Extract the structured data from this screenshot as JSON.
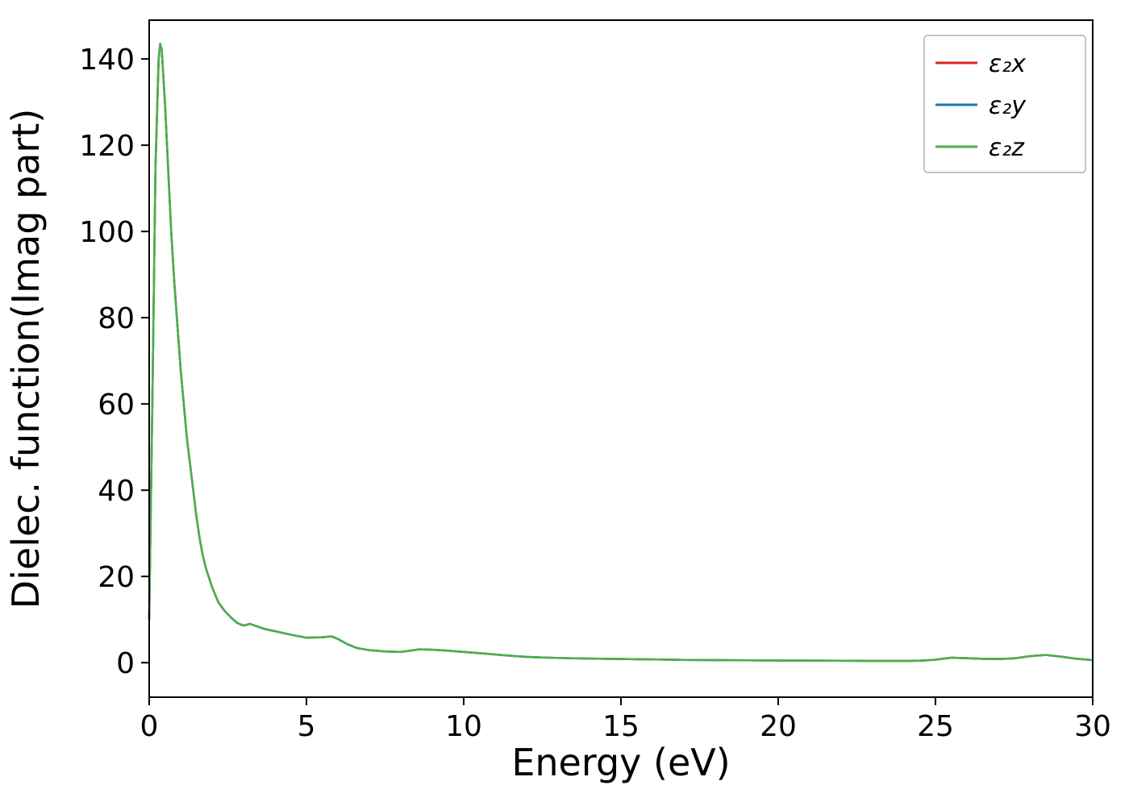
{
  "figure": {
    "background": "#ffffff"
  },
  "chart_data": {
    "type": "line",
    "title": "",
    "xlabel": "Energy (eV)",
    "ylabel": "Dielec. function(Imag part)",
    "xlim": [
      0,
      30
    ],
    "ylim": [
      -8,
      149
    ],
    "xticks": [
      0,
      5,
      10,
      15,
      20,
      25,
      30
    ],
    "yticks": [
      0,
      20,
      40,
      60,
      80,
      100,
      120,
      140
    ],
    "grid": false,
    "legend_position": "upper right",
    "x": [
      0,
      0.1,
      0.2,
      0.3,
      0.35,
      0.4,
      0.5,
      0.6,
      0.7,
      0.8,
      0.9,
      1.0,
      1.1,
      1.2,
      1.3,
      1.4,
      1.5,
      1.6,
      1.7,
      1.8,
      2.0,
      2.2,
      2.4,
      2.6,
      2.8,
      3.0,
      3.2,
      3.4,
      3.6,
      3.8,
      4.0,
      4.5,
      5.0,
      5.5,
      5.8,
      6.0,
      6.3,
      6.6,
      7.0,
      7.5,
      8.0,
      8.3,
      8.6,
      9.0,
      9.5,
      10.0,
      10.5,
      11.0,
      11.5,
      12.0,
      12.5,
      13.0,
      14.0,
      15.0,
      16.0,
      17.0,
      18.0,
      19.0,
      20.0,
      21.0,
      22.0,
      23.0,
      24.0,
      24.5,
      25.0,
      25.5,
      26.0,
      26.5,
      27.0,
      27.5,
      28.0,
      28.5,
      29.0,
      29.5,
      30.0
    ],
    "series": [
      {
        "name": "ε₂x",
        "color": "#d62728",
        "values": [
          10,
          60,
          115,
          140,
          143.5,
          142,
          130,
          115,
          100,
          88,
          78,
          68,
          60,
          52,
          46,
          40,
          34,
          29,
          25,
          22,
          17.5,
          14,
          12,
          10.5,
          9.2,
          8.6,
          9.0,
          8.5,
          8.0,
          7.6,
          7.3,
          6.5,
          5.8,
          5.9,
          6.1,
          5.5,
          4.3,
          3.4,
          2.9,
          2.6,
          2.5,
          2.8,
          3.1,
          3.0,
          2.8,
          2.5,
          2.2,
          1.9,
          1.6,
          1.35,
          1.2,
          1.1,
          0.95,
          0.85,
          0.75,
          0.65,
          0.6,
          0.55,
          0.5,
          0.48,
          0.45,
          0.42,
          0.4,
          0.45,
          0.7,
          1.15,
          1.05,
          0.9,
          0.85,
          1.0,
          1.5,
          1.8,
          1.4,
          0.9,
          0.6
        ]
      },
      {
        "name": "ε₂y",
        "color": "#1f77b4",
        "values": [
          10,
          60,
          115,
          140,
          143.5,
          142,
          130,
          115,
          100,
          88,
          78,
          68,
          60,
          52,
          46,
          40,
          34,
          29,
          25,
          22,
          17.5,
          14,
          12,
          10.5,
          9.2,
          8.6,
          9.0,
          8.5,
          8.0,
          7.6,
          7.3,
          6.5,
          5.8,
          5.9,
          6.1,
          5.5,
          4.3,
          3.4,
          2.9,
          2.6,
          2.5,
          2.8,
          3.1,
          3.0,
          2.8,
          2.5,
          2.2,
          1.9,
          1.6,
          1.35,
          1.2,
          1.1,
          0.95,
          0.85,
          0.75,
          0.65,
          0.6,
          0.55,
          0.5,
          0.48,
          0.45,
          0.42,
          0.4,
          0.45,
          0.7,
          1.15,
          1.05,
          0.9,
          0.85,
          1.0,
          1.5,
          1.8,
          1.4,
          0.9,
          0.6
        ]
      },
      {
        "name": "ε₂z",
        "color": "#4daf4a",
        "values": [
          10,
          60,
          115,
          140,
          143.5,
          142,
          130,
          115,
          100,
          88,
          78,
          68,
          60,
          52,
          46,
          40,
          34,
          29,
          25,
          22,
          17.5,
          14,
          12,
          10.5,
          9.2,
          8.6,
          9.0,
          8.5,
          8.0,
          7.6,
          7.3,
          6.5,
          5.8,
          5.9,
          6.1,
          5.5,
          4.3,
          3.4,
          2.9,
          2.6,
          2.5,
          2.8,
          3.1,
          3.0,
          2.8,
          2.5,
          2.2,
          1.9,
          1.6,
          1.35,
          1.2,
          1.1,
          0.95,
          0.85,
          0.75,
          0.65,
          0.6,
          0.55,
          0.5,
          0.48,
          0.45,
          0.42,
          0.4,
          0.45,
          0.7,
          1.15,
          1.05,
          0.9,
          0.85,
          1.0,
          1.5,
          1.8,
          1.4,
          0.9,
          0.6
        ]
      }
    ]
  }
}
